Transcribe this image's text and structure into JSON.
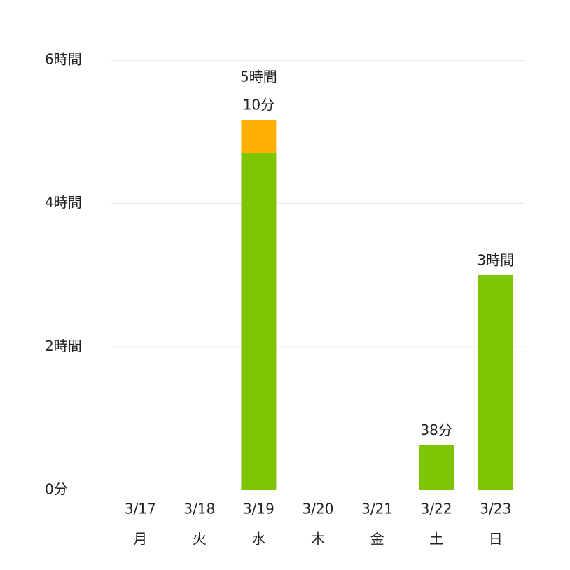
{
  "chart_data": {
    "type": "stacked_bar",
    "categories": [
      "3/17",
      "3/18",
      "3/19",
      "3/20",
      "3/21",
      "3/22",
      "3/23"
    ],
    "category_sublabels": [
      "月",
      "火",
      "水",
      "木",
      "金",
      "土",
      "日"
    ],
    "series": [
      {
        "color": "#7fc400",
        "values": [
          0,
          0,
          4.7,
          0,
          0,
          0.63,
          3
        ]
      },
      {
        "color": "#ffb000",
        "values": [
          0,
          0,
          0.47,
          0,
          0,
          0,
          0
        ]
      }
    ],
    "totals": [
      null,
      null,
      5.17,
      null,
      null,
      0.63,
      3
    ],
    "total_labels": [
      null,
      null,
      [
        "5時間",
        "10分"
      ],
      null,
      null,
      [
        "38分"
      ],
      [
        "3時間"
      ]
    ],
    "ylim": [
      0,
      6
    ],
    "yticks": [
      {
        "value": 0,
        "label": "0分"
      },
      {
        "value": 2,
        "label": "2時間"
      },
      {
        "value": 4,
        "label": "4時間"
      },
      {
        "value": 6,
        "label": "6時間"
      }
    ],
    "grid": true
  }
}
